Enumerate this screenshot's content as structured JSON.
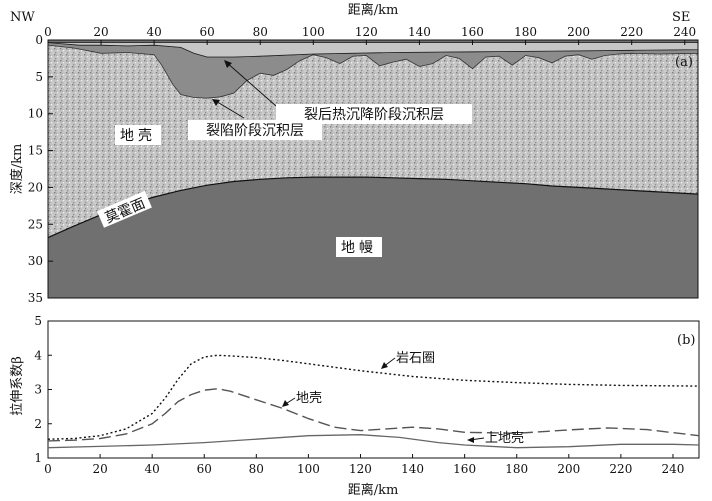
{
  "chart_data": [
    {
      "panel": "a",
      "type": "area",
      "panel_label": "(a)",
      "top_axis_label": "距离/km",
      "ylabel": "深度/km",
      "direction_left": "NW",
      "direction_right": "SE",
      "x_ticks": [
        0,
        20,
        40,
        60,
        80,
        100,
        120,
        140,
        160,
        180,
        200,
        220,
        240
      ],
      "y_ticks": [
        0,
        5,
        10,
        15,
        20,
        25,
        30,
        35
      ],
      "xlim": [
        0,
        245
      ],
      "ylim": [
        0,
        35
      ],
      "y_inverted": true,
      "layers": {
        "post_rift": "裂后热沉降阶段沉积层",
        "syn_rift": "裂陷阶段沉积层",
        "crust": "地壳",
        "moho": "莫霍面",
        "mantle": "地幔"
      },
      "colors": {
        "post_rift": "#c6c6c6",
        "syn_rift": "#8c8c8c",
        "crust": "#bdbdbd",
        "mantle": "#707070"
      },
      "seafloor": {
        "x": [
          0,
          12,
          20,
          30,
          40,
          50,
          55,
          60,
          70,
          80,
          100,
          130,
          160,
          190,
          220,
          245
        ],
        "depth": [
          0.3,
          0.7,
          0.7,
          0.8,
          0.7,
          1.0,
          1.8,
          2.3,
          2.3,
          2.2,
          1.9,
          1.7,
          1.6,
          1.5,
          1.4,
          1.3
        ]
      },
      "basement": {
        "x": [
          0,
          10,
          20,
          30,
          40,
          43,
          47,
          50,
          55,
          60,
          65,
          70,
          75,
          80,
          85,
          90,
          95,
          100,
          105,
          110,
          115,
          120,
          125,
          130,
          135,
          140,
          145,
          150,
          155,
          160,
          165,
          170,
          175,
          180,
          185,
          190,
          195,
          200,
          205,
          210,
          215,
          220,
          230,
          245
        ],
        "depth": [
          0.7,
          1.1,
          1.8,
          1.7,
          2.0,
          3.5,
          6.0,
          7.4,
          7.8,
          7.9,
          7.7,
          7.2,
          5.5,
          4.5,
          4.8,
          4.0,
          2.8,
          2.0,
          2.4,
          3.2,
          2.2,
          2.1,
          3.5,
          3.0,
          2.6,
          3.6,
          3.2,
          2.1,
          2.5,
          3.9,
          2.3,
          2.2,
          3.4,
          2.1,
          2.4,
          3.1,
          2.2,
          2.0,
          2.6,
          2.1,
          1.9,
          1.8,
          1.9,
          1.8
        ]
      },
      "moho_line": {
        "x": [
          0,
          10,
          20,
          30,
          40,
          50,
          60,
          70,
          80,
          90,
          100,
          110,
          120,
          130,
          140,
          150,
          160,
          170,
          180,
          190,
          200,
          210,
          220,
          230,
          245
        ],
        "depth": [
          26.8,
          25.2,
          23.7,
          22.4,
          21.3,
          20.4,
          19.7,
          19.2,
          18.9,
          18.7,
          18.6,
          18.6,
          18.6,
          18.7,
          18.8,
          18.9,
          19.1,
          19.3,
          19.5,
          19.8,
          20.0,
          20.2,
          20.4,
          20.6,
          20.9
        ]
      }
    },
    {
      "panel": "b",
      "type": "line",
      "panel_label": "(b)",
      "xlabel": "距离/km",
      "ylabel": "拉伸系数β",
      "xlim": [
        0,
        250
      ],
      "ylim": [
        1,
        5
      ],
      "x_ticks": [
        0,
        20,
        40,
        60,
        80,
        100,
        120,
        140,
        160,
        180,
        200,
        220,
        240
      ],
      "y_ticks": [
        1,
        2,
        3,
        4,
        5
      ],
      "series": [
        {
          "name": "岩石圈",
          "style": "dotted",
          "x": [
            0,
            10,
            20,
            30,
            40,
            45,
            50,
            55,
            60,
            65,
            70,
            80,
            90,
            100,
            120,
            140,
            160,
            180,
            200,
            220,
            250
          ],
          "values": [
            1.55,
            1.57,
            1.65,
            1.85,
            2.3,
            2.75,
            3.3,
            3.75,
            3.95,
            4.0,
            3.98,
            3.93,
            3.85,
            3.75,
            3.55,
            3.38,
            3.27,
            3.2,
            3.15,
            3.12,
            3.1
          ]
        },
        {
          "name": "地壳",
          "style": "dashed",
          "x": [
            0,
            10,
            20,
            30,
            40,
            45,
            50,
            55,
            60,
            65,
            70,
            80,
            90,
            100,
            110,
            120,
            130,
            140,
            150,
            160,
            180,
            200,
            215,
            230,
            250
          ],
          "values": [
            1.5,
            1.52,
            1.57,
            1.7,
            2.0,
            2.3,
            2.65,
            2.85,
            2.98,
            3.02,
            2.95,
            2.7,
            2.45,
            2.15,
            1.9,
            1.8,
            1.85,
            1.9,
            1.85,
            1.75,
            1.72,
            1.82,
            1.88,
            1.83,
            1.65
          ]
        },
        {
          "name": "上地壳",
          "style": "solid",
          "x": [
            0,
            20,
            40,
            60,
            80,
            100,
            120,
            135,
            150,
            160,
            180,
            200,
            220,
            240,
            250
          ],
          "values": [
            1.3,
            1.34,
            1.38,
            1.45,
            1.55,
            1.65,
            1.68,
            1.6,
            1.45,
            1.38,
            1.3,
            1.33,
            1.4,
            1.4,
            1.38
          ]
        }
      ]
    }
  ]
}
